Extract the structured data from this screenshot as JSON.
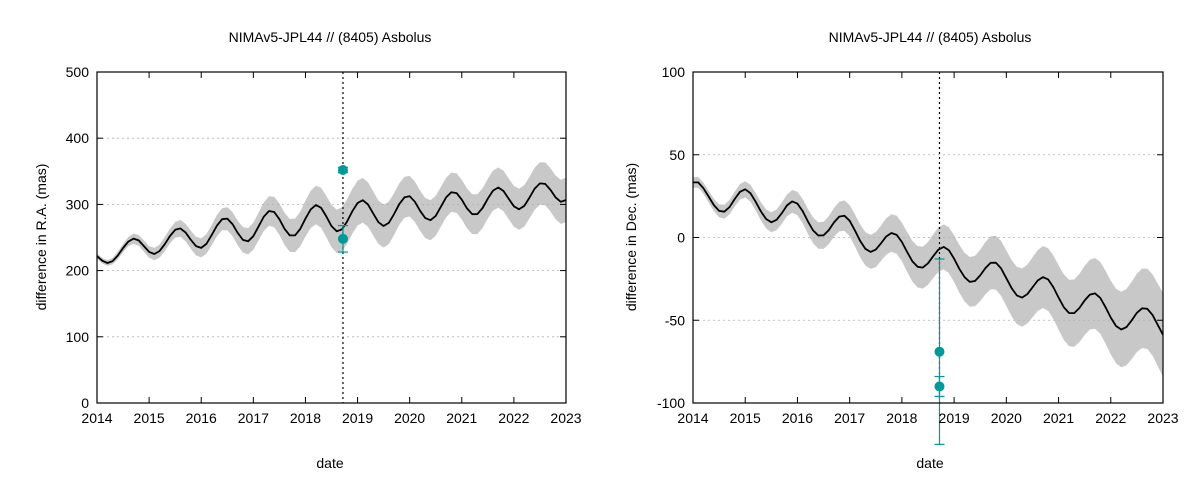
{
  "chart_data": [
    {
      "type": "line",
      "title": "NIMAv5-JPL44 // (8405) Asbolus",
      "xlabel": "date",
      "ylabel": "difference in R.A. (mas)",
      "xlim": [
        2014,
        2023
      ],
      "ylim": [
        0,
        500
      ],
      "x_ticks": [
        "2014",
        "2015",
        "2016",
        "2017",
        "2018",
        "2019",
        "2020",
        "2021",
        "2022",
        "2023"
      ],
      "y_ticks": [
        "0",
        "100",
        "200",
        "300",
        "400",
        "500"
      ],
      "grid": true,
      "vertical_marker": 2018.72,
      "series": [
        {
          "kind": "line",
          "color": "#000000",
          "x": [
            2014.0,
            2014.1,
            2014.2,
            2014.3,
            2014.4,
            2014.5,
            2014.6,
            2014.7,
            2014.8,
            2014.9,
            2015.0,
            2015.1,
            2015.2,
            2015.3,
            2015.4,
            2015.5,
            2015.6,
            2015.7,
            2015.8,
            2015.9,
            2016.0,
            2016.1,
            2016.2,
            2016.3,
            2016.4,
            2016.5,
            2016.6,
            2016.7,
            2016.8,
            2016.9,
            2017.0,
            2017.1,
            2017.2,
            2017.3,
            2017.4,
            2017.5,
            2017.6,
            2017.7,
            2017.8,
            2017.9,
            2018.0,
            2018.1,
            2018.2,
            2018.3,
            2018.4,
            2018.5,
            2018.6,
            2018.7,
            2018.8,
            2018.9,
            2019.0,
            2019.1,
            2019.2,
            2019.3,
            2019.4,
            2019.5,
            2019.6,
            2019.7,
            2019.8,
            2019.9,
            2020.0,
            2020.1,
            2020.2,
            2020.3,
            2020.4,
            2020.5,
            2020.6,
            2020.7,
            2020.8,
            2020.9,
            2021.0,
            2021.1,
            2021.2,
            2021.3,
            2021.4,
            2021.5,
            2021.6,
            2021.7,
            2021.8,
            2021.9,
            2022.0,
            2022.1,
            2022.2,
            2022.3,
            2022.4,
            2022.5,
            2022.6,
            2022.7,
            2022.8,
            2022.9,
            2023.0
          ],
          "y": [
            222.1,
            214.9,
            211.5,
            214.2,
            222.8,
            234.1,
            243.8,
            248.3,
            245.6,
            237.0,
            228.2,
            225.0,
            229.4,
            239.8,
            252.3,
            261.7,
            263.7,
            257.6,
            246.6,
            237.0,
            234.3,
            240.4,
            253.4,
            267.9,
            277.6,
            278.5,
            270.2,
            256.9,
            246.4,
            244.3,
            251.9,
            266.4,
            281.4,
            290.0,
            288.5,
            277.6,
            263.0,
            253.1,
            253.1,
            262.9,
            278.4,
            292.5,
            299.1,
            294.9,
            281.8,
            267.2,
            259.3,
            262.3,
            274.1,
            289.6,
            302.1,
            306.3,
            299.8,
            286.4,
            273.1,
            267.3,
            272.0,
            285.2,
            300.3,
            310.8,
            312.4,
            303.9,
            290.4,
            279.3,
            276.1,
            282.7,
            296.5,
            310.5,
            318.4,
            317.0,
            307.1,
            294.0,
            285.2,
            285.3,
            294.5,
            308.6,
            320.8,
            325.5,
            320.2,
            308.5,
            297.1,
            292.6,
            297.8,
            310.3,
            323.8,
            331.7,
            331.0,
            322.1,
            310.6,
            303.9,
            306.7
          ]
        },
        {
          "kind": "band",
          "color": "#c8c8c8",
          "x": [
            2014.0,
            2014.1,
            2014.2,
            2014.3,
            2014.4,
            2014.5,
            2014.6,
            2014.7,
            2014.8,
            2014.9,
            2015.0,
            2015.1,
            2015.2,
            2015.3,
            2015.4,
            2015.5,
            2015.6,
            2015.7,
            2015.8,
            2015.9,
            2016.0,
            2016.1,
            2016.2,
            2016.3,
            2016.4,
            2016.5,
            2016.6,
            2016.7,
            2016.8,
            2016.9,
            2017.0,
            2017.1,
            2017.2,
            2017.3,
            2017.4,
            2017.5,
            2017.6,
            2017.7,
            2017.8,
            2017.9,
            2018.0,
            2018.1,
            2018.2,
            2018.3,
            2018.4,
            2018.5,
            2018.6,
            2018.7,
            2018.8,
            2018.9,
            2019.0,
            2019.1,
            2019.2,
            2019.3,
            2019.4,
            2019.5,
            2019.6,
            2019.7,
            2019.8,
            2019.9,
            2020.0,
            2020.1,
            2020.2,
            2020.3,
            2020.4,
            2020.5,
            2020.6,
            2020.7,
            2020.8,
            2020.9,
            2021.0,
            2021.1,
            2021.2,
            2021.3,
            2021.4,
            2021.5,
            2021.6,
            2021.7,
            2021.8,
            2021.9,
            2022.0,
            2022.1,
            2022.2,
            2022.3,
            2022.4,
            2022.5,
            2022.6,
            2022.7,
            2022.8,
            2022.9,
            2023.0
          ],
          "upper": [
            226.1,
            219.0,
            215.9,
            219.1,
            228.4,
            240.4,
            250.8,
            256.0,
            253.8,
            245.4,
            237.1,
            234.3,
            239.3,
            250.3,
            263.5,
            273.6,
            276.4,
            270.9,
            260.4,
            251.2,
            248.7,
            255.2,
            268.8,
            284.0,
            294.3,
            295.9,
            288.3,
            275.6,
            265.8,
            264.2,
            272.3,
            287.4,
            303.0,
            312.3,
            311.5,
            301.3,
            287.3,
            278.0,
            278.5,
            289.0,
            305.5,
            320.7,
            328.3,
            325.1,
            312.9,
            299.2,
            292.0,
            295.5,
            307.8,
            323.4,
            336.0,
            340.1,
            333.3,
            319.6,
            305.9,
            299.7,
            304.0,
            316.8,
            331.6,
            341.8,
            343.1,
            334.5,
            320.9,
            309.6,
            306.3,
            312.8,
            326.4,
            340.3,
            348.2,
            346.9,
            337.1,
            324.1,
            315.3,
            315.4,
            324.5,
            338.6,
            351.0,
            355.8,
            350.7,
            339.2,
            328.0,
            323.7,
            329.1,
            341.8,
            355.6,
            363.8,
            363.4,
            354.8,
            343.6,
            337.2,
            340.3
          ],
          "lower": [
            218.1,
            210.8,
            207.1,
            209.3,
            217.2,
            227.8,
            236.8,
            240.6,
            237.4,
            228.6,
            219.3,
            215.7,
            219.5,
            229.3,
            241.1,
            249.8,
            251.0,
            244.3,
            232.8,
            222.8,
            219.9,
            225.6,
            238.0,
            251.8,
            260.9,
            261.1,
            252.1,
            238.2,
            227.0,
            224.4,
            231.5,
            245.4,
            259.8,
            267.7,
            265.5,
            253.9,
            238.7,
            228.2,
            227.7,
            236.8,
            251.3,
            264.3,
            269.9,
            264.7,
            250.7,
            235.2,
            226.6,
            229.1,
            240.4,
            255.8,
            268.2,
            272.5,
            266.3,
            253.2,
            240.3,
            234.9,
            240.0,
            253.6,
            269.0,
            279.8,
            281.7,
            273.3,
            259.9,
            249.0,
            245.9,
            252.6,
            266.6,
            280.7,
            288.6,
            287.1,
            277.1,
            263.9,
            255.1,
            255.2,
            264.5,
            278.6,
            290.6,
            295.2,
            289.7,
            277.8,
            266.2,
            261.5,
            266.5,
            278.8,
            292.0,
            299.6,
            298.6,
            289.4,
            277.6,
            270.6,
            273.1
          ]
        },
        {
          "kind": "points",
          "color": "#009999",
          "x": [
            2018.72,
            2018.72
          ],
          "y": [
            352,
            248
          ],
          "yerr": [
            4,
            20
          ]
        }
      ]
    },
    {
      "type": "line",
      "title": "NIMAv5-JPL44 // (8405) Asbolus",
      "xlabel": "date",
      "ylabel": "difference in Dec. (mas)",
      "xlim": [
        2014,
        2023
      ],
      "ylim": [
        -100,
        100
      ],
      "x_ticks": [
        "2014",
        "2015",
        "2016",
        "2017",
        "2018",
        "2019",
        "2020",
        "2021",
        "2022",
        "2023"
      ],
      "y_ticks": [
        "-100",
        "-50",
        "0",
        "50",
        "100"
      ],
      "grid": true,
      "vertical_marker": 2018.72,
      "series": [
        {
          "kind": "line",
          "color": "#000000",
          "x": [
            2014.0,
            2014.1,
            2014.2,
            2014.3,
            2014.4,
            2014.5,
            2014.6,
            2014.7,
            2014.8,
            2014.9,
            2015.0,
            2015.1,
            2015.2,
            2015.3,
            2015.4,
            2015.5,
            2015.6,
            2015.7,
            2015.8,
            2015.9,
            2016.0,
            2016.1,
            2016.2,
            2016.3,
            2016.4,
            2016.5,
            2016.6,
            2016.7,
            2016.8,
            2016.9,
            2017.0,
            2017.1,
            2017.2,
            2017.3,
            2017.4,
            2017.5,
            2017.6,
            2017.7,
            2017.8,
            2017.9,
            2018.0,
            2018.1,
            2018.2,
            2018.3,
            2018.4,
            2018.5,
            2018.6,
            2018.7,
            2018.8,
            2018.9,
            2019.0,
            2019.1,
            2019.2,
            2019.3,
            2019.4,
            2019.5,
            2019.6,
            2019.7,
            2019.8,
            2019.9,
            2020.0,
            2020.1,
            2020.2,
            2020.3,
            2020.4,
            2020.5,
            2020.6,
            2020.7,
            2020.8,
            2020.9,
            2021.0,
            2021.1,
            2021.2,
            2021.3,
            2021.4,
            2021.5,
            2021.6,
            2021.7,
            2021.8,
            2021.9,
            2022.0,
            2022.1,
            2022.2,
            2022.3,
            2022.4,
            2022.5,
            2022.6,
            2022.7,
            2022.8,
            2022.9,
            2023.0
          ],
          "y": [
            33.3,
            33.3,
            29.8,
            24.7,
            19.6,
            16.1,
            15.6,
            18.4,
            23.3,
            27.6,
            29.1,
            26.8,
            21.6,
            15.8,
            11.2,
            9.2,
            10.7,
            14.7,
            19.4,
            21.8,
            20.5,
            15.9,
            9.7,
            4.3,
            1.2,
            1.3,
            4.5,
            9.1,
            12.6,
            13.2,
            10.1,
            4.3,
            -2.0,
            -6.8,
            -8.7,
            -7.3,
            -3.5,
            0.6,
            2.7,
            1.6,
            -2.7,
            -8.7,
            -14.3,
            -17.7,
            -18.2,
            -15.6,
            -11.3,
            -7.3,
            -5.7,
            -7.7,
            -12.8,
            -18.9,
            -24.0,
            -26.8,
            -26.3,
            -22.9,
            -18.5,
            -15.3,
            -15.2,
            -18.7,
            -24.6,
            -30.6,
            -35.0,
            -36.3,
            -34.3,
            -30.2,
            -26.0,
            -23.9,
            -25.3,
            -30.0,
            -36.3,
            -42.1,
            -45.6,
            -45.7,
            -42.6,
            -38.0,
            -34.5,
            -33.8,
            -36.5,
            -42.2,
            -48.4,
            -53.5,
            -55.6,
            -54.2,
            -50.1,
            -45.5,
            -42.8,
            -43.1,
            -46.9,
            -52.9,
            -58.8
          ]
        },
        {
          "kind": "band",
          "color": "#c8c8c8",
          "x": [
            2014.0,
            2014.1,
            2014.2,
            2014.3,
            2014.4,
            2014.5,
            2014.6,
            2014.7,
            2014.8,
            2014.9,
            2015.0,
            2015.1,
            2015.2,
            2015.3,
            2015.4,
            2015.5,
            2015.6,
            2015.7,
            2015.8,
            2015.9,
            2016.0,
            2016.1,
            2016.2,
            2016.3,
            2016.4,
            2016.5,
            2016.6,
            2016.7,
            2016.8,
            2016.9,
            2017.0,
            2017.1,
            2017.2,
            2017.3,
            2017.4,
            2017.5,
            2017.6,
            2017.7,
            2017.8,
            2017.9,
            2018.0,
            2018.1,
            2018.2,
            2018.3,
            2018.4,
            2018.5,
            2018.6,
            2018.7,
            2018.8,
            2018.9,
            2019.0,
            2019.1,
            2019.2,
            2019.3,
            2019.4,
            2019.5,
            2019.6,
            2019.7,
            2019.8,
            2019.9,
            2020.0,
            2020.1,
            2020.2,
            2020.3,
            2020.4,
            2020.5,
            2020.6,
            2020.7,
            2020.8,
            2020.9,
            2021.0,
            2021.1,
            2021.2,
            2021.3,
            2021.4,
            2021.5,
            2021.6,
            2021.7,
            2021.8,
            2021.9,
            2022.0,
            2022.1,
            2022.2,
            2022.3,
            2022.4,
            2022.5,
            2022.6,
            2022.7,
            2022.8,
            2022.9,
            2023.0
          ],
          "upper": [
            36.5,
            36.6,
            33.2,
            28.3,
            23.3,
            20.0,
            19.8,
            22.7,
            27.8,
            32.3,
            34.0,
            31.9,
            26.9,
            21.3,
            16.9,
            15.2,
            16.9,
            21.1,
            26.0,
            28.7,
            27.6,
            23.2,
            17.3,
            12.1,
            9.2,
            9.5,
            13.0,
            17.8,
            21.5,
            22.4,
            19.5,
            14.0,
            7.9,
            3.3,
            1.6,
            3.3,
            7.2,
            11.6,
            14.0,
            13.1,
            9.0,
            3.3,
            -2.0,
            -5.2,
            -5.5,
            -2.7,
            1.9,
            6.1,
            7.9,
            6.1,
            1.3,
            -4.5,
            -9.3,
            -11.8,
            -11.1,
            -7.4,
            -2.7,
            0.7,
            1.1,
            -2.1,
            -7.8,
            -13.6,
            -17.7,
            -18.7,
            -16.5,
            -12.1,
            -7.6,
            -5.2,
            -6.4,
            -10.8,
            -16.8,
            -22.3,
            -25.5,
            -25.4,
            -22.0,
            -17.1,
            -13.4,
            -12.4,
            -14.8,
            -20.2,
            -26.1,
            -31.0,
            -32.8,
            -31.1,
            -26.7,
            -21.8,
            -18.8,
            -18.8,
            -22.3,
            -27.9,
            -33.5
          ],
          "lower": [
            30.1,
            30.0,
            26.4,
            21.1,
            15.9,
            12.2,
            11.4,
            14.1,
            18.8,
            22.9,
            24.2,
            21.7,
            16.3,
            10.3,
            5.5,
            3.2,
            4.5,
            8.3,
            12.8,
            14.9,
            13.4,
            8.6,
            2.1,
            -3.5,
            -6.8,
            -6.9,
            -4.0,
            0.4,
            3.7,
            4.0,
            0.7,
            -5.4,
            -11.9,
            -16.9,
            -19.0,
            -17.9,
            -14.2,
            -10.4,
            -8.6,
            -9.9,
            -14.4,
            -20.7,
            -26.6,
            -30.2,
            -30.9,
            -28.5,
            -24.5,
            -20.7,
            -19.3,
            -21.5,
            -26.9,
            -33.3,
            -38.7,
            -41.8,
            -41.5,
            -38.4,
            -34.3,
            -31.3,
            -31.5,
            -35.3,
            -41.4,
            -47.6,
            -52.3,
            -53.9,
            -52.1,
            -48.3,
            -44.4,
            -42.6,
            -44.2,
            -49.2,
            -55.8,
            -61.9,
            -65.7,
            -66.0,
            -63.2,
            -58.9,
            -55.6,
            -55.2,
            -58.2,
            -64.2,
            -70.7,
            -76.0,
            -78.4,
            -77.3,
            -73.5,
            -69.2,
            -66.8,
            -67.4,
            -71.5,
            -77.9,
            -84.1
          ]
        },
        {
          "kind": "points",
          "color": "#009999",
          "x": [
            2018.72,
            2018.72
          ],
          "y": [
            -69,
            -90
          ],
          "yerr": [
            56,
            6
          ]
        }
      ]
    }
  ]
}
